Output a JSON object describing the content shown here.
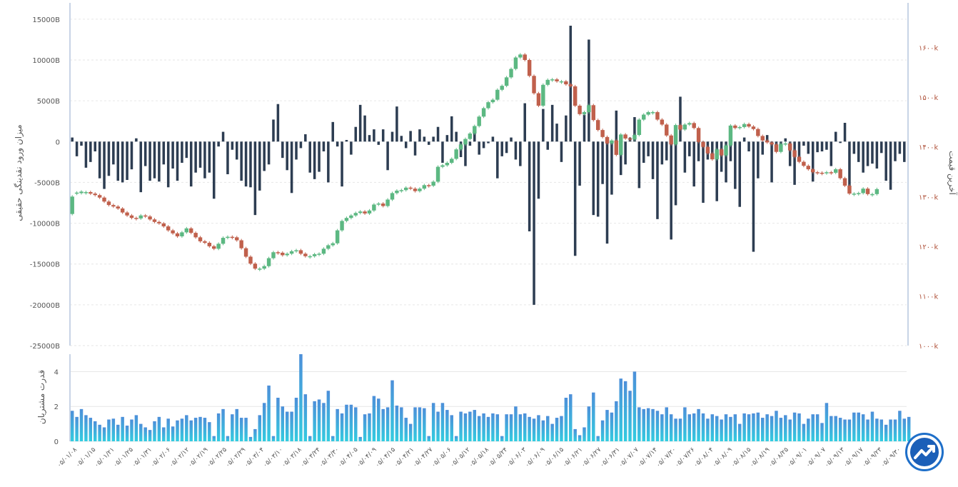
{
  "colors": {
    "flow_bar": "#2d3d52",
    "candle_up": "#5cb882",
    "candle_down": "#c0604c",
    "right_axis_text": "#b0533c",
    "left_axis_text": "#555555",
    "buyer_bar_top": "#4d8fd9",
    "buyer_bar_bottom": "#33cce0",
    "grid": "#e6e6e6",
    "axis_line": "#c8d4e6"
  },
  "chart_data": [
    {
      "type": "bar+candlestick",
      "ylabel_left": "میزان ورود نقدینگی حقیقی",
      "ylabel_right": "آخرین قیمت",
      "left_ticks": [
        "15000B",
        "10000B",
        "5000B",
        "0",
        "-5000B",
        "-10000B",
        "-15000B",
        "-20000B",
        "-25000B"
      ],
      "left_tick_values": [
        15000,
        10000,
        5000,
        0,
        -5000,
        -10000,
        -15000,
        -20000,
        -25000
      ],
      "left_ylim": [
        -25000,
        17000
      ],
      "right_ticks": [
        "۱۶۰۰k",
        "۱۵۰۰k",
        "۱۴۰۰k",
        "۱۳۰۰k",
        "۱۲۰۰k",
        "۱۱۰۰k",
        "۱۰۰۰k"
      ],
      "right_tick_values": [
        1600,
        1500,
        1400,
        1300,
        1200,
        1100,
        1000
      ],
      "right_ylim": [
        1000,
        1690
      ],
      "flow_values": [
        500,
        -1800,
        -500,
        -3200,
        -2500,
        -1200,
        -4500,
        -5800,
        -4200,
        -2800,
        -4800,
        -5000,
        -4700,
        -3400,
        400,
        -6200,
        -3000,
        -4800,
        -4500,
        -4900,
        -2800,
        -5600,
        -3300,
        -4800,
        -2600,
        -2000,
        -5500,
        -3800,
        -3200,
        -4500,
        -3800,
        -7000,
        -600,
        1200,
        -4000,
        -1000,
        -2200,
        -4800,
        -5500,
        -5600,
        -9000,
        -6000,
        -3600,
        -2800,
        2700,
        4600,
        -2000,
        -3500,
        -6300,
        -2200,
        -800,
        900,
        -3800,
        -4600,
        -3700,
        -1200,
        -5000,
        2400,
        -600,
        -5500,
        200,
        -1600,
        1800,
        4500,
        3200,
        800,
        1500,
        -400,
        1500,
        -3500,
        1200,
        4300,
        700,
        -800,
        1300,
        -1700,
        1500,
        600,
        -400,
        600,
        1800,
        -2600,
        800,
        3100,
        1200,
        -1900,
        -3000,
        -500,
        1500,
        -1600,
        -800,
        -200,
        600,
        -4500,
        -1800,
        -1400,
        500,
        -2200,
        -3000,
        4700,
        -11000,
        -20000,
        -7000,
        4000,
        -1000,
        4500,
        2200,
        -2500,
        3200,
        14200,
        -14000,
        -5400,
        3300,
        12500,
        -9000,
        -9200,
        -5200,
        -12500,
        -6500,
        3800,
        -4100,
        -2800,
        500,
        3000,
        -5700,
        -2600,
        -1800,
        -4600,
        -9500,
        -2800,
        -2300,
        -12000,
        -7800,
        5500,
        -3800,
        -1800,
        -5500,
        -2400,
        -7500,
        -2200,
        -1800,
        -7300,
        -3700,
        -5000,
        -2400,
        -5800,
        -8000,
        500,
        -1200,
        -13500,
        -4500,
        -1600,
        800,
        -5000,
        -800,
        -1200,
        400,
        -3000,
        -5300,
        -2200,
        -500,
        -1500,
        -4900,
        -1300,
        -1200,
        -1000,
        -3000,
        1200,
        -100,
        2300,
        -5400,
        -1500,
        -2500,
        -3800,
        -3000,
        -2700,
        -3300,
        -1400,
        -4800,
        -5900,
        -2400,
        -1500,
        -2500
      ]
    },
    {
      "type": "bar",
      "ylabel": "قدرت مشتریان",
      "ticks": [
        "4",
        "2",
        "0"
      ],
      "tick_values": [
        4,
        2,
        0
      ],
      "ylim": [
        0,
        5
      ],
      "values": [
        1.75,
        1.4,
        1.85,
        1.5,
        1.35,
        1.15,
        0.95,
        0.8,
        1.25,
        1.3,
        0.95,
        1.4,
        0.9,
        1.25,
        1.5,
        1.0,
        0.8,
        0.65,
        1.15,
        1.4,
        0.8,
        1.3,
        0.85,
        1.2,
        1.3,
        1.5,
        1.2,
        1.35,
        1.4,
        1.35,
        1.1,
        0.3,
        1.6,
        1.85,
        0.3,
        1.55,
        1.85,
        1.35,
        1.35,
        0.25,
        0.7,
        1.5,
        2.2,
        3.2,
        0.3,
        2.5,
        2.0,
        1.7,
        1.7,
        2.5,
        5.0,
        2.7,
        0.3,
        2.3,
        2.4,
        2.2,
        2.9,
        0.3,
        1.85,
        1.6,
        2.1,
        2.1,
        1.95,
        0.25,
        1.55,
        1.6,
        2.6,
        2.45,
        1.85,
        1.95,
        3.5,
        2.05,
        1.95,
        1.35,
        1.0,
        1.95,
        1.95,
        1.9,
        0.3,
        2.2,
        1.7,
        2.2,
        1.8,
        1.5,
        0.3,
        1.7,
        1.6,
        1.7,
        1.8,
        1.45,
        1.6,
        1.4,
        1.6,
        1.55,
        0.3,
        1.55,
        1.55,
        2.0,
        1.55,
        1.6,
        1.4,
        1.3,
        1.5,
        1.2,
        1.45,
        1.0,
        1.35,
        1.45,
        2.5,
        2.7,
        0.7,
        0.35,
        0.8,
        2.0,
        2.8,
        0.3,
        1.2,
        1.8,
        1.65,
        2.3,
        3.6,
        3.45,
        2.9,
        4.0,
        1.95,
        1.85,
        1.9,
        1.85,
        1.75,
        1.55,
        1.95,
        1.55,
        1.3,
        1.3,
        1.95,
        1.55,
        1.6,
        1.85,
        1.6,
        1.3,
        1.55,
        1.45,
        1.25,
        1.55,
        1.4,
        1.55,
        1.0,
        1.6,
        1.55,
        1.6,
        1.65,
        1.35,
        1.55,
        1.45,
        1.75,
        1.35,
        1.5,
        1.25,
        1.65,
        1.6,
        1.0,
        1.3,
        1.55,
        1.55,
        1.05,
        2.2,
        1.45,
        1.45,
        1.35,
        1.25,
        1.25,
        1.65,
        1.65,
        1.55,
        1.25,
        1.7,
        1.3,
        1.25,
        0.95,
        1.25,
        1.25,
        1.75,
        1.3,
        1.4
      ]
    }
  ],
  "candles": [
    [
      1265,
      1300
    ],
    [
      1306,
      1308
    ],
    [
      1307,
      1310
    ],
    [
      1308,
      1309
    ],
    [
      1309,
      1306
    ],
    [
      1306,
      1303
    ],
    [
      1303,
      1298
    ],
    [
      1298,
      1290
    ],
    [
      1290,
      1283
    ],
    [
      1283,
      1280
    ],
    [
      1280,
      1276
    ],
    [
      1276,
      1268
    ],
    [
      1268,
      1262
    ],
    [
      1262,
      1257
    ],
    [
      1257,
      1256
    ],
    [
      1256,
      1262
    ],
    [
      1262,
      1260
    ],
    [
      1260,
      1254
    ],
    [
      1254,
      1249
    ],
    [
      1249,
      1246
    ],
    [
      1246,
      1240
    ],
    [
      1240,
      1232
    ],
    [
      1232,
      1226
    ],
    [
      1226,
      1220
    ],
    [
      1220,
      1228
    ],
    [
      1228,
      1236
    ],
    [
      1236,
      1227
    ],
    [
      1227,
      1218
    ],
    [
      1218,
      1210
    ],
    [
      1210,
      1207
    ],
    [
      1207,
      1200
    ],
    [
      1200,
      1195
    ],
    [
      1195,
      1205
    ],
    [
      1205,
      1217
    ],
    [
      1217,
      1219
    ],
    [
      1219,
      1218
    ],
    [
      1218,
      1212
    ],
    [
      1212,
      1196
    ],
    [
      1196,
      1179
    ],
    [
      1179,
      1165
    ],
    [
      1165,
      1155
    ],
    [
      1155,
      1155
    ],
    [
      1155,
      1160
    ],
    [
      1160,
      1176
    ],
    [
      1176,
      1188
    ],
    [
      1188,
      1187
    ],
    [
      1187,
      1182
    ],
    [
      1182,
      1185
    ],
    [
      1185,
      1190
    ],
    [
      1190,
      1192
    ],
    [
      1192,
      1185
    ],
    [
      1185,
      1180
    ],
    [
      1180,
      1180
    ],
    [
      1180,
      1184
    ],
    [
      1184,
      1185
    ],
    [
      1185,
      1195
    ],
    [
      1195,
      1202
    ],
    [
      1202,
      1206
    ],
    [
      1206,
      1232
    ],
    [
      1232,
      1251
    ],
    [
      1251,
      1257
    ],
    [
      1257,
      1262
    ],
    [
      1262,
      1267
    ],
    [
      1267,
      1270
    ],
    [
      1270,
      1266
    ],
    [
      1266,
      1272
    ],
    [
      1272,
      1284
    ],
    [
      1284,
      1286
    ],
    [
      1286,
      1281
    ],
    [
      1281,
      1294
    ],
    [
      1294,
      1307
    ],
    [
      1307,
      1312
    ],
    [
      1312,
      1313
    ],
    [
      1313,
      1318
    ],
    [
      1318,
      1316
    ],
    [
      1316,
      1311
    ],
    [
      1311,
      1316
    ],
    [
      1316,
      1323
    ],
    [
      1323,
      1322
    ],
    [
      1322,
      1330
    ],
    [
      1330,
      1360
    ],
    [
      1360,
      1363
    ],
    [
      1363,
      1368
    ],
    [
      1368,
      1376
    ],
    [
      1376,
      1395
    ],
    [
      1395,
      1405
    ],
    [
      1405,
      1416
    ],
    [
      1416,
      1427
    ],
    [
      1427,
      1442
    ],
    [
      1442,
      1461
    ],
    [
      1461,
      1478
    ],
    [
      1478,
      1490
    ],
    [
      1490,
      1495
    ],
    [
      1495,
      1515
    ],
    [
      1515,
      1523
    ],
    [
      1523,
      1540
    ],
    [
      1540,
      1557
    ],
    [
      1557,
      1580
    ],
    [
      1580,
      1586
    ],
    [
      1586,
      1575
    ],
    [
      1575,
      1543
    ],
    [
      1543,
      1508
    ],
    [
      1508,
      1483
    ],
    [
      1483,
      1525
    ],
    [
      1525,
      1535
    ],
    [
      1535,
      1536
    ],
    [
      1536,
      1532
    ],
    [
      1532,
      1532
    ],
    [
      1532,
      1526
    ],
    [
      1526,
      1522
    ],
    [
      1522,
      1483
    ],
    [
      1483,
      1466
    ],
    [
      1466,
      1470
    ],
    [
      1470,
      1484
    ],
    [
      1484,
      1454
    ],
    [
      1454,
      1434
    ],
    [
      1434,
      1420
    ],
    [
      1420,
      1407
    ],
    [
      1407,
      1413
    ],
    [
      1413,
      1384
    ],
    [
      1384,
      1425
    ],
    [
      1425,
      1417
    ],
    [
      1417,
      1415
    ],
    [
      1415,
      1424
    ],
    [
      1424,
      1455
    ],
    [
      1455,
      1465
    ],
    [
      1465,
      1470
    ],
    [
      1470,
      1470
    ],
    [
      1470,
      1455
    ],
    [
      1455,
      1445
    ],
    [
      1445,
      1423
    ],
    [
      1423,
      1405
    ],
    [
      1405,
      1444
    ],
    [
      1444,
      1435
    ],
    [
      1435,
      1445
    ],
    [
      1445,
      1448
    ],
    [
      1448,
      1438
    ],
    [
      1438,
      1410
    ],
    [
      1410,
      1400
    ],
    [
      1400,
      1387
    ],
    [
      1387,
      1375
    ],
    [
      1375,
      1395
    ],
    [
      1395,
      1383
    ],
    [
      1383,
      1403
    ],
    [
      1403,
      1443
    ],
    [
      1443,
      1438
    ],
    [
      1438,
      1440
    ],
    [
      1440,
      1446
    ],
    [
      1446,
      1441
    ],
    [
      1441,
      1436
    ],
    [
      1436,
      1422
    ],
    [
      1422,
      1413
    ],
    [
      1413,
      1409
    ],
    [
      1409,
      1405
    ],
    [
      1405,
      1390
    ],
    [
      1390,
      1406
    ],
    [
      1406,
      1407
    ],
    [
      1407,
      1393
    ],
    [
      1393,
      1380
    ],
    [
      1380,
      1370
    ],
    [
      1370,
      1362
    ],
    [
      1362,
      1355
    ],
    [
      1355,
      1349
    ],
    [
      1349,
      1348
    ],
    [
      1348,
      1347
    ],
    [
      1347,
      1349
    ],
    [
      1349,
      1348
    ],
    [
      1348,
      1355
    ],
    [
      1355,
      1337
    ],
    [
      1337,
      1322
    ],
    [
      1322,
      1306
    ],
    [
      1306,
      1306
    ],
    [
      1306,
      1307
    ],
    [
      1307,
      1316
    ],
    [
      1316,
      1305
    ],
    [
      1305,
      1305
    ],
    [
      1305,
      1315
    ]
  ],
  "x_labels": [
    "۰۵/۰۱/۰۸",
    "۰۵/۰۱/۱۵",
    "۰۵/۰۱/۲۱",
    "۰۵/۰۱/۲۵",
    "۰۵/۰۱/۳۱",
    "۰۵/۰۲/۰۶",
    "۰۵/۰۲/۱۲",
    "۰۵/۰۲/۱۹",
    "۰۵/۰۲/۲۵",
    "۰۵/۰۲/۲۹",
    "۰۵/۰۳/۰۴",
    "۰۵/۰۳/۱۰",
    "۰۵/۰۳/۱۸",
    "۰۵/۰۳/۲۴",
    "۰۵/۰۳/۳۰",
    "۰۵/۰۴/۰۵",
    "۰۵/۰۴/۰۹",
    "۰۵/۰۴/۱۵",
    "۰۵/۰۴/۲۱",
    "۰۵/۰۴/۲۷",
    "۰۵/۰۵/۰۶",
    "۰۵/۰۵/۱۲",
    "۰۵/۰۵/۱۸",
    "۰۵/۰۵/۲۴",
    "۰۵/۰۶/۰۳",
    "۰۵/۰۶/۰۹",
    "۰۵/۰۶/۱۵",
    "۰۵/۰۶/۲۱",
    "۰۵/۰۶/۲۷",
    "۰۵/۰۶/۳۱",
    "۰۵/۰۷/۰۷",
    "۰۵/۰۷/۱۴",
    "۰۵/۰۷/۲۰",
    "۰۵/۰۷/۲۶",
    "۰۵/۰۸/۰۴",
    "۰۵/۰۸/۰۹",
    "۰۵/۰۸/۱۵",
    "۰۵/۰۸/۱۹",
    "۰۵/۰۸/۲۵",
    "۰۵/۰۹/۰۱",
    "۰۵/۰۹/۰۷",
    "۰۵/۰۹/۱۳",
    "۰۵/۰۹/۱۷",
    "۰۵/۰۹/۲۳",
    "۰۵/۰۹/۳۰"
  ]
}
